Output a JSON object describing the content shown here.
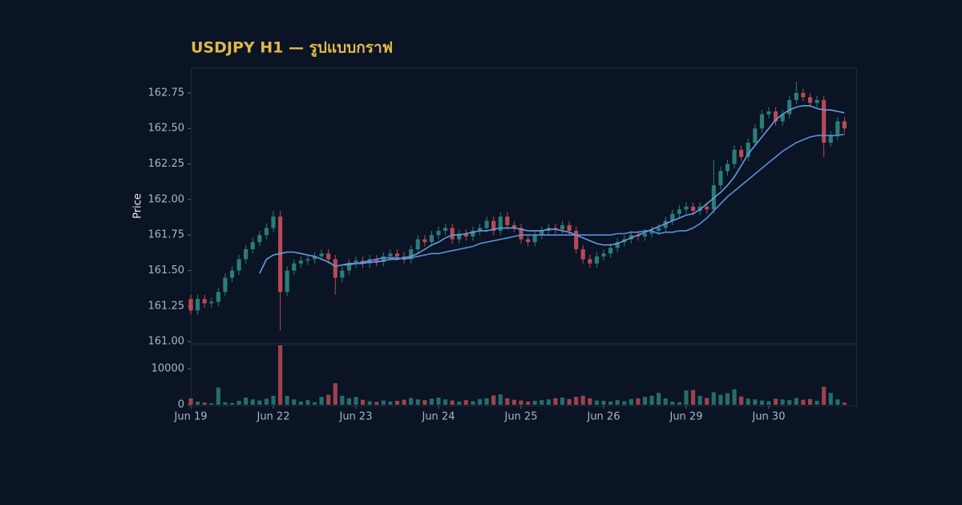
{
  "chart_data": {
    "type": "candlestick",
    "title": "USDJPY H1 — รูปแบบกราฟ",
    "ylabel": "Price",
    "xlim": [
      0,
      96.7
    ],
    "xticks": [
      {
        "value": 0,
        "label": "Jun 19"
      },
      {
        "value": 12,
        "label": "Jun 22"
      },
      {
        "value": 24,
        "label": "Jun 23"
      },
      {
        "value": 36,
        "label": "Jun 24"
      },
      {
        "value": 48,
        "label": "Jun 25"
      },
      {
        "value": 60,
        "label": "Jun 26"
      },
      {
        "value": 72,
        "label": "Jun 29"
      },
      {
        "value": 84,
        "label": "Jun 30"
      }
    ],
    "ylim": [
      160.99,
      162.93
    ],
    "yticks": [
      {
        "value": 161.0,
        "label": "161.00"
      },
      {
        "value": 161.25,
        "label": "161.25"
      },
      {
        "value": 161.5,
        "label": "161.50"
      },
      {
        "value": 161.75,
        "label": "161.75"
      },
      {
        "value": 162.0,
        "label": "162.00"
      },
      {
        "value": 162.25,
        "label": "162.25"
      },
      {
        "value": 162.5,
        "label": "162.50"
      },
      {
        "value": 162.75,
        "label": "162.75"
      }
    ],
    "volume_ylim": [
      0,
      16700
    ],
    "volume_yticks": [
      0,
      10000
    ],
    "up_color": "#2b7d78",
    "down_color": "#b84a55",
    "open": [
      161.3,
      161.22,
      161.3,
      161.27,
      161.28,
      161.35,
      161.45,
      161.5,
      161.58,
      161.65,
      161.7,
      161.75,
      161.8,
      161.88,
      161.35,
      161.5,
      161.55,
      161.57,
      161.58,
      161.6,
      161.62,
      161.58,
      161.45,
      161.5,
      161.55,
      161.57,
      161.55,
      161.58,
      161.56,
      161.6,
      161.62,
      161.6,
      161.58,
      161.65,
      161.72,
      161.7,
      161.75,
      161.78,
      161.8,
      161.72,
      161.76,
      161.74,
      161.78,
      161.8,
      161.85,
      161.78,
      161.88,
      161.82,
      161.8,
      161.72,
      161.7,
      161.75,
      161.78,
      161.8,
      161.79,
      161.82,
      161.78,
      161.65,
      161.58,
      161.55,
      161.6,
      161.62,
      161.66,
      161.7,
      161.72,
      161.75,
      161.74,
      161.76,
      161.78,
      161.8,
      161.85,
      161.9,
      161.93,
      161.95,
      161.92,
      161.95,
      161.93,
      162.1,
      162.2,
      162.25,
      162.35,
      162.3,
      162.4,
      162.5,
      162.6,
      162.62,
      162.55,
      162.6,
      162.7,
      162.75,
      162.72,
      162.68,
      162.7,
      162.4,
      162.45,
      162.55
    ],
    "high": [
      161.33,
      161.33,
      161.33,
      161.31,
      161.38,
      161.48,
      161.53,
      161.61,
      161.68,
      161.73,
      161.78,
      161.83,
      161.92,
      161.92,
      161.53,
      161.58,
      161.6,
      161.61,
      161.63,
      161.65,
      161.65,
      161.61,
      161.53,
      161.58,
      161.6,
      161.6,
      161.61,
      161.61,
      161.63,
      161.65,
      161.65,
      161.63,
      161.68,
      161.75,
      161.75,
      161.78,
      161.81,
      161.83,
      161.83,
      161.79,
      161.79,
      161.81,
      161.83,
      161.88,
      161.88,
      161.91,
      161.91,
      161.85,
      161.83,
      161.75,
      161.78,
      161.81,
      161.83,
      161.83,
      161.85,
      161.85,
      161.81,
      161.68,
      161.61,
      161.63,
      161.65,
      161.69,
      161.73,
      161.75,
      161.78,
      161.78,
      161.79,
      161.81,
      161.83,
      161.88,
      161.93,
      161.96,
      161.98,
      161.98,
      161.98,
      161.98,
      162.28,
      162.23,
      162.28,
      162.38,
      162.38,
      162.43,
      162.53,
      162.63,
      162.65,
      162.65,
      162.63,
      162.73,
      162.83,
      162.78,
      162.75,
      162.73,
      162.73,
      162.48,
      162.58,
      162.58
    ],
    "low": [
      161.19,
      161.19,
      161.24,
      161.24,
      161.25,
      161.32,
      161.42,
      161.47,
      161.55,
      161.62,
      161.67,
      161.72,
      161.77,
      161.08,
      161.32,
      161.47,
      161.52,
      161.54,
      161.55,
      161.57,
      161.55,
      161.33,
      161.42,
      161.47,
      161.52,
      161.52,
      161.52,
      161.53,
      161.53,
      161.57,
      161.57,
      161.55,
      161.55,
      161.62,
      161.67,
      161.67,
      161.72,
      161.75,
      161.69,
      161.69,
      161.71,
      161.71,
      161.75,
      161.77,
      161.75,
      161.75,
      161.79,
      161.77,
      161.69,
      161.67,
      161.67,
      161.72,
      161.75,
      161.76,
      161.76,
      161.75,
      161.62,
      161.55,
      161.52,
      161.52,
      161.57,
      161.59,
      161.63,
      161.67,
      161.69,
      161.71,
      161.71,
      161.73,
      161.75,
      161.77,
      161.82,
      161.87,
      161.9,
      161.89,
      161.89,
      161.9,
      161.9,
      162.07,
      162.17,
      162.22,
      162.27,
      162.27,
      162.37,
      162.47,
      162.57,
      162.52,
      162.52,
      162.57,
      162.67,
      162.69,
      162.65,
      162.65,
      162.3,
      162.37,
      162.42,
      162.47
    ],
    "close": [
      161.22,
      161.3,
      161.27,
      161.28,
      161.35,
      161.45,
      161.5,
      161.58,
      161.65,
      161.7,
      161.75,
      161.8,
      161.88,
      161.35,
      161.5,
      161.55,
      161.57,
      161.58,
      161.6,
      161.62,
      161.58,
      161.45,
      161.5,
      161.55,
      161.57,
      161.55,
      161.58,
      161.56,
      161.6,
      161.62,
      161.6,
      161.58,
      161.65,
      161.72,
      161.7,
      161.75,
      161.78,
      161.8,
      161.72,
      161.76,
      161.74,
      161.78,
      161.8,
      161.85,
      161.78,
      161.88,
      161.82,
      161.8,
      161.72,
      161.7,
      161.75,
      161.78,
      161.8,
      161.79,
      161.82,
      161.78,
      161.65,
      161.58,
      161.55,
      161.6,
      161.62,
      161.66,
      161.7,
      161.72,
      161.75,
      161.74,
      161.76,
      161.78,
      161.8,
      161.85,
      161.9,
      161.93,
      161.95,
      161.92,
      161.95,
      161.93,
      162.1,
      162.2,
      162.25,
      162.35,
      162.3,
      162.4,
      162.5,
      162.6,
      162.62,
      162.55,
      162.6,
      162.7,
      162.75,
      162.72,
      162.68,
      162.7,
      162.4,
      162.45,
      162.55,
      162.5
    ],
    "volume": [
      1800,
      900,
      600,
      400,
      4800,
      700,
      500,
      1100,
      2000,
      1500,
      1200,
      1700,
      2500,
      16500,
      2500,
      1500,
      900,
      1300,
      700,
      2200,
      2800,
      6000,
      2500,
      1800,
      2200,
      1400,
      1000,
      800,
      1200,
      900,
      1100,
      1400,
      1900,
      1500,
      1300,
      1700,
      2000,
      1500,
      1200,
      900,
      1300,
      1000,
      1600,
      1800,
      2600,
      2900,
      1800,
      1400,
      1200,
      900,
      1100,
      1300,
      1500,
      1800,
      2000,
      1600,
      2200,
      2500,
      1800,
      1200,
      1100,
      900,
      1300,
      1000,
      1600,
      1800,
      2200,
      2500,
      3300,
      1800,
      900,
      700,
      4000,
      4100,
      2500,
      1900,
      3500,
      2800,
      3200,
      4300,
      2300,
      1700,
      1500,
      1200,
      1000,
      1700,
      1500,
      1300,
      1900,
      1400,
      1600,
      1100,
      5000,
      3300,
      1500,
      600
    ],
    "moving_averages": [
      {
        "color": "#6a9ae0",
        "values": [
          null,
          null,
          null,
          null,
          null,
          null,
          null,
          null,
          null,
          null,
          161.48,
          161.58,
          161.61,
          161.62,
          161.63,
          161.63,
          161.62,
          161.61,
          161.6,
          161.58,
          161.56,
          161.53,
          161.54,
          161.55,
          161.55,
          161.55,
          161.56,
          161.56,
          161.57,
          161.58,
          161.58,
          161.59,
          161.6,
          161.62,
          161.65,
          161.68,
          161.7,
          161.73,
          161.75,
          161.75,
          161.76,
          161.77,
          161.78,
          161.78,
          161.79,
          161.8,
          161.8,
          161.8,
          161.79,
          161.78,
          161.78,
          161.78,
          161.79,
          161.79,
          161.78,
          161.77,
          161.75,
          161.73,
          161.71,
          161.69,
          161.68,
          161.68,
          161.69,
          161.71,
          161.73,
          161.75,
          161.77,
          161.79,
          161.81,
          161.83,
          161.85,
          161.87,
          161.89,
          161.9,
          161.93,
          161.97,
          162.01,
          162.05,
          162.1,
          162.16,
          162.24,
          162.32,
          162.38,
          162.44,
          162.5,
          162.56,
          162.6,
          162.63,
          162.65,
          162.66,
          162.66,
          162.64,
          162.63,
          162.63,
          162.62,
          162.61
        ]
      },
      {
        "color": "#5b8fd9",
        "values": [
          null,
          null,
          null,
          null,
          null,
          null,
          null,
          null,
          null,
          null,
          null,
          null,
          null,
          null,
          null,
          null,
          null,
          null,
          null,
          null,
          null,
          161.53,
          161.54,
          161.54,
          161.55,
          161.56,
          161.57,
          161.58,
          161.59,
          161.59,
          161.59,
          161.58,
          161.59,
          161.6,
          161.61,
          161.62,
          161.62,
          161.63,
          161.64,
          161.65,
          161.66,
          161.67,
          161.69,
          161.7,
          161.71,
          161.72,
          161.73,
          161.74,
          161.75,
          161.75,
          161.75,
          161.75,
          161.75,
          161.75,
          161.75,
          161.75,
          161.75,
          161.75,
          161.75,
          161.75,
          161.75,
          161.75,
          161.76,
          161.76,
          161.77,
          161.77,
          161.78,
          161.78,
          161.76,
          161.77,
          161.77,
          161.78,
          161.78,
          161.8,
          161.83,
          161.87,
          161.92,
          161.97,
          162.02,
          162.06,
          162.1,
          162.14,
          162.18,
          162.22,
          162.26,
          162.3,
          162.34,
          162.37,
          162.4,
          162.42,
          162.44,
          162.45,
          162.45,
          162.45,
          162.45,
          162.46
        ]
      }
    ]
  }
}
